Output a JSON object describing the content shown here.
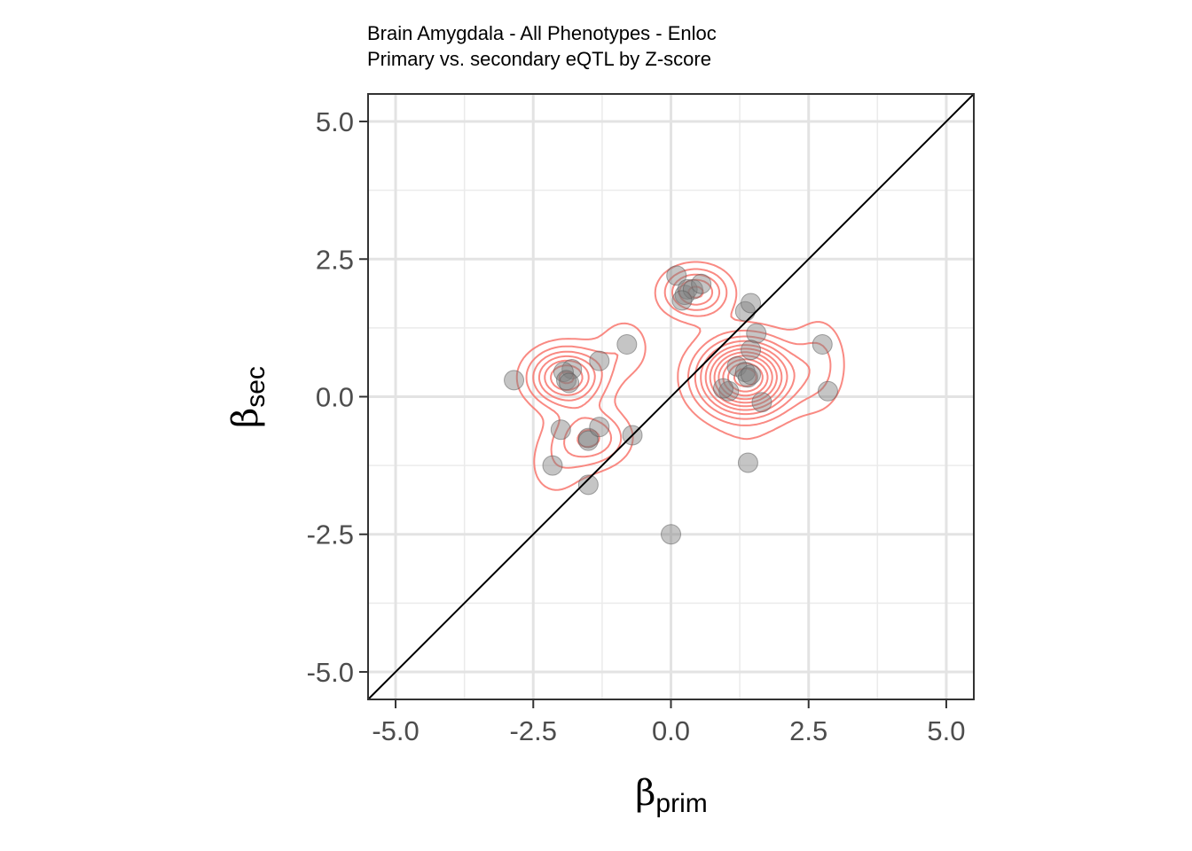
{
  "chart_data": {
    "type": "scatter",
    "title": "Brain Amygdala - All Phenotypes - Enloc",
    "subtitle": "Primary vs. secondary eQTL by Z-score",
    "xlabel": {
      "symbol": "β",
      "sub": "prim"
    },
    "ylabel": {
      "symbol": "β",
      "sub": "sec"
    },
    "xlim": [
      -5.5,
      5.5
    ],
    "ylim": [
      -5.5,
      5.5
    ],
    "xticks": [
      -5.0,
      -2.5,
      0.0,
      2.5,
      5.0
    ],
    "yticks": [
      -5.0,
      -2.5,
      0.0,
      2.5,
      5.0
    ],
    "xtick_labels": [
      "-5.0",
      "-2.5",
      "0.0",
      "2.5",
      "5.0"
    ],
    "ytick_labels": [
      "-5.0",
      "-2.5",
      "0.0",
      "2.5",
      "5.0"
    ],
    "grid": true,
    "reference_line": "y = x",
    "point_color": "#7f7f7f",
    "contour_color": "#f8766d",
    "points": [
      {
        "x": 0.1,
        "y": 2.2
      },
      {
        "x": 0.25,
        "y": 1.85
      },
      {
        "x": 0.3,
        "y": 1.95
      },
      {
        "x": 0.4,
        "y": 1.95
      },
      {
        "x": 0.55,
        "y": 2.05
      },
      {
        "x": 0.2,
        "y": 1.75
      },
      {
        "x": 1.35,
        "y": 1.55
      },
      {
        "x": 1.45,
        "y": 1.7
      },
      {
        "x": 1.55,
        "y": 1.15
      },
      {
        "x": 1.45,
        "y": 0.85
      },
      {
        "x": 1.2,
        "y": 0.55
      },
      {
        "x": 1.35,
        "y": 0.45
      },
      {
        "x": 1.4,
        "y": 0.35
      },
      {
        "x": 1.45,
        "y": 0.4
      },
      {
        "x": 1.05,
        "y": 0.1
      },
      {
        "x": 0.95,
        "y": 0.15
      },
      {
        "x": 1.65,
        "y": -0.1
      },
      {
        "x": 2.75,
        "y": 0.95
      },
      {
        "x": 2.85,
        "y": 0.1
      },
      {
        "x": 1.4,
        "y": -1.2
      },
      {
        "x": -0.8,
        "y": 0.95
      },
      {
        "x": -1.3,
        "y": 0.65
      },
      {
        "x": -1.8,
        "y": 0.5
      },
      {
        "x": -1.95,
        "y": 0.45
      },
      {
        "x": -1.9,
        "y": 0.3
      },
      {
        "x": -1.85,
        "y": 0.25
      },
      {
        "x": -2.85,
        "y": 0.3
      },
      {
        "x": -2.0,
        "y": -0.6
      },
      {
        "x": -1.5,
        "y": -0.75
      },
      {
        "x": -1.5,
        "y": -0.8
      },
      {
        "x": -1.3,
        "y": -0.55
      },
      {
        "x": -0.7,
        "y": -0.7
      },
      {
        "x": -2.15,
        "y": -1.25
      },
      {
        "x": -1.5,
        "y": -1.6
      },
      {
        "x": 0.0,
        "y": -2.5
      }
    ],
    "density_clusters": [
      {
        "cx": 1.35,
        "cy": 0.35,
        "sx": 0.55,
        "sy": 0.45,
        "w": 1.0
      },
      {
        "cx": -1.9,
        "cy": 0.35,
        "sx": 0.45,
        "sy": 0.35,
        "w": 0.62
      },
      {
        "cx": 0.45,
        "cy": 1.9,
        "sx": 0.4,
        "sy": 0.3,
        "w": 0.45
      },
      {
        "cx": -1.45,
        "cy": -0.75,
        "sx": 0.45,
        "sy": 0.35,
        "w": 0.35
      },
      {
        "cx": 2.7,
        "cy": 0.6,
        "sx": 0.35,
        "sy": 0.6,
        "w": 0.18
      },
      {
        "cx": -0.85,
        "cy": 0.9,
        "sx": 0.35,
        "sy": 0.4,
        "w": 0.15
      },
      {
        "cx": -2.1,
        "cy": -1.3,
        "sx": 0.4,
        "sy": 0.45,
        "w": 0.12
      },
      {
        "cx": 0.0,
        "cy": -2.45,
        "sx": 0.5,
        "sy": 0.3,
        "w": 0.08
      },
      {
        "cx": 1.4,
        "cy": -1.2,
        "sx": 0.5,
        "sy": 0.4,
        "w": 0.07
      }
    ]
  }
}
